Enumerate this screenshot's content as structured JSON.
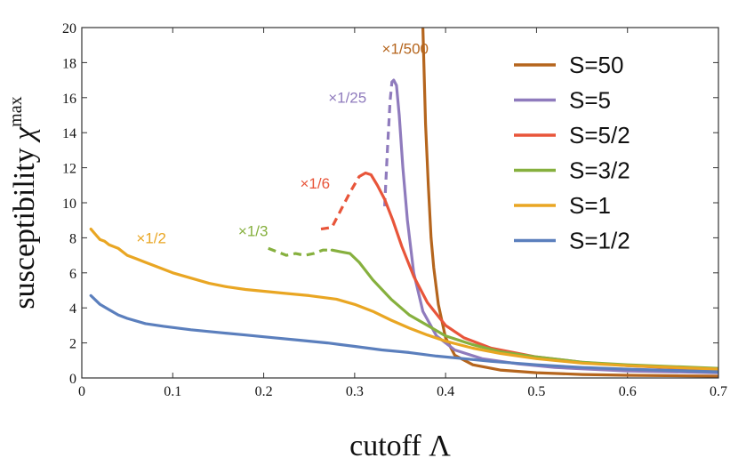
{
  "chart_data": {
    "type": "line",
    "title": "",
    "xlabel_text": "cutoff",
    "xlabel_symbol": "Λ",
    "ylabel_text": "susceptibility",
    "ylabel_symbol": "χ",
    "ylabel_superscript": "max",
    "xlim": [
      0,
      0.7
    ],
    "ylim": [
      0,
      20
    ],
    "xticks": [
      0,
      0.1,
      0.2,
      0.3,
      0.4,
      0.5,
      0.6,
      0.7
    ],
    "xtick_labels": [
      "0",
      "0.1",
      "0.2",
      "0.3",
      "0.4",
      "0.5",
      "0.6",
      "0.7"
    ],
    "yticks": [
      0,
      2,
      4,
      6,
      8,
      10,
      12,
      14,
      16,
      18,
      20
    ],
    "ytick_labels": [
      "0",
      "2",
      "4",
      "6",
      "8",
      "10",
      "12",
      "14",
      "16",
      "18",
      "20"
    ],
    "legend_position": "top-right",
    "series": [
      {
        "name": "S=50",
        "color": "#b5651d",
        "annotation": "×1/500",
        "annotation_at": [
          0.33,
          18.5
        ],
        "dashed": [],
        "solid": [
          [
            0.375,
            20
          ],
          [
            0.378,
            14.5
          ],
          [
            0.381,
            11
          ],
          [
            0.384,
            8
          ],
          [
            0.387,
            6.3
          ],
          [
            0.392,
            4.2
          ],
          [
            0.4,
            2.3
          ],
          [
            0.41,
            1.3
          ],
          [
            0.43,
            0.75
          ],
          [
            0.46,
            0.45
          ],
          [
            0.5,
            0.3
          ],
          [
            0.55,
            0.2
          ],
          [
            0.6,
            0.15
          ],
          [
            0.7,
            0.1
          ]
        ]
      },
      {
        "name": "S=5",
        "color": "#8f7bbd",
        "annotation": "×1/25",
        "annotation_at": [
          0.271,
          15.7
        ],
        "dashed": [
          [
            0.333,
            9.8
          ],
          [
            0.336,
            13
          ],
          [
            0.339,
            15.8
          ],
          [
            0.341,
            16.9
          ]
        ],
        "solid": [
          [
            0.341,
            16.9
          ],
          [
            0.343,
            17.0
          ],
          [
            0.346,
            16.7
          ],
          [
            0.349,
            15
          ],
          [
            0.353,
            12
          ],
          [
            0.358,
            9
          ],
          [
            0.365,
            6
          ],
          [
            0.375,
            3.8
          ],
          [
            0.39,
            2.4
          ],
          [
            0.41,
            1.6
          ],
          [
            0.44,
            1.1
          ],
          [
            0.48,
            0.8
          ],
          [
            0.52,
            0.6
          ],
          [
            0.6,
            0.4
          ],
          [
            0.7,
            0.3
          ]
        ]
      },
      {
        "name": "S=5/2",
        "color": "#e8553a",
        "annotation": "×1/6",
        "annotation_at": [
          0.24,
          10.8
        ],
        "dashed": [
          [
            0.263,
            8.5
          ],
          [
            0.275,
            8.6
          ],
          [
            0.285,
            9.6
          ],
          [
            0.295,
            10.6
          ],
          [
            0.305,
            11.5
          ]
        ],
        "solid": [
          [
            0.305,
            11.5
          ],
          [
            0.312,
            11.7
          ],
          [
            0.318,
            11.6
          ],
          [
            0.325,
            11.0
          ],
          [
            0.333,
            10.2
          ],
          [
            0.342,
            9.0
          ],
          [
            0.352,
            7.5
          ],
          [
            0.365,
            5.8
          ],
          [
            0.38,
            4.3
          ],
          [
            0.4,
            3.0
          ],
          [
            0.42,
            2.3
          ],
          [
            0.45,
            1.7
          ],
          [
            0.5,
            1.2
          ],
          [
            0.55,
            0.9
          ],
          [
            0.6,
            0.7
          ],
          [
            0.7,
            0.45
          ]
        ]
      },
      {
        "name": "S=3/2",
        "color": "#86b03e",
        "annotation": "×1/3",
        "annotation_at": [
          0.172,
          8.1
        ],
        "dashed": [
          [
            0.205,
            7.4
          ],
          [
            0.215,
            7.2
          ],
          [
            0.225,
            7.0
          ],
          [
            0.235,
            7.1
          ],
          [
            0.245,
            7.0
          ],
          [
            0.255,
            7.1
          ],
          [
            0.265,
            7.3
          ],
          [
            0.275,
            7.3
          ]
        ],
        "solid": [
          [
            0.275,
            7.3
          ],
          [
            0.285,
            7.2
          ],
          [
            0.295,
            7.1
          ],
          [
            0.305,
            6.6
          ],
          [
            0.32,
            5.6
          ],
          [
            0.34,
            4.5
          ],
          [
            0.36,
            3.6
          ],
          [
            0.38,
            3.0
          ],
          [
            0.4,
            2.4
          ],
          [
            0.43,
            1.9
          ],
          [
            0.46,
            1.5
          ],
          [
            0.5,
            1.2
          ],
          [
            0.55,
            0.9
          ],
          [
            0.6,
            0.75
          ],
          [
            0.7,
            0.55
          ]
        ]
      },
      {
        "name": "S=1",
        "color": "#e9a623",
        "annotation": "×1/2",
        "annotation_at": [
          0.06,
          7.7
        ],
        "dashed": [],
        "solid": [
          [
            0.01,
            8.5
          ],
          [
            0.015,
            8.2
          ],
          [
            0.02,
            7.9
          ],
          [
            0.025,
            7.8
          ],
          [
            0.03,
            7.6
          ],
          [
            0.04,
            7.4
          ],
          [
            0.05,
            7.0
          ],
          [
            0.06,
            6.8
          ],
          [
            0.07,
            6.6
          ],
          [
            0.08,
            6.4
          ],
          [
            0.1,
            6.0
          ],
          [
            0.12,
            5.7
          ],
          [
            0.14,
            5.4
          ],
          [
            0.16,
            5.2
          ],
          [
            0.18,
            5.05
          ],
          [
            0.2,
            4.95
          ],
          [
            0.22,
            4.85
          ],
          [
            0.25,
            4.7
          ],
          [
            0.28,
            4.5
          ],
          [
            0.3,
            4.2
          ],
          [
            0.32,
            3.8
          ],
          [
            0.34,
            3.3
          ],
          [
            0.36,
            2.85
          ],
          [
            0.38,
            2.45
          ],
          [
            0.4,
            2.1
          ],
          [
            0.43,
            1.7
          ],
          [
            0.46,
            1.4
          ],
          [
            0.5,
            1.1
          ],
          [
            0.55,
            0.85
          ],
          [
            0.6,
            0.7
          ],
          [
            0.7,
            0.5
          ]
        ]
      },
      {
        "name": "S=1/2",
        "color": "#5b7fbd",
        "annotation": "",
        "annotation_at": [
          0,
          0
        ],
        "dashed": [],
        "solid": [
          [
            0.01,
            4.7
          ],
          [
            0.02,
            4.2
          ],
          [
            0.03,
            3.9
          ],
          [
            0.04,
            3.6
          ],
          [
            0.05,
            3.4
          ],
          [
            0.07,
            3.1
          ],
          [
            0.09,
            2.95
          ],
          [
            0.12,
            2.75
          ],
          [
            0.15,
            2.6
          ],
          [
            0.18,
            2.45
          ],
          [
            0.21,
            2.3
          ],
          [
            0.24,
            2.15
          ],
          [
            0.27,
            2.0
          ],
          [
            0.3,
            1.8
          ],
          [
            0.33,
            1.6
          ],
          [
            0.36,
            1.45
          ],
          [
            0.39,
            1.25
          ],
          [
            0.42,
            1.1
          ],
          [
            0.45,
            0.95
          ],
          [
            0.5,
            0.75
          ],
          [
            0.55,
            0.6
          ],
          [
            0.6,
            0.5
          ],
          [
            0.7,
            0.35
          ]
        ]
      }
    ]
  }
}
